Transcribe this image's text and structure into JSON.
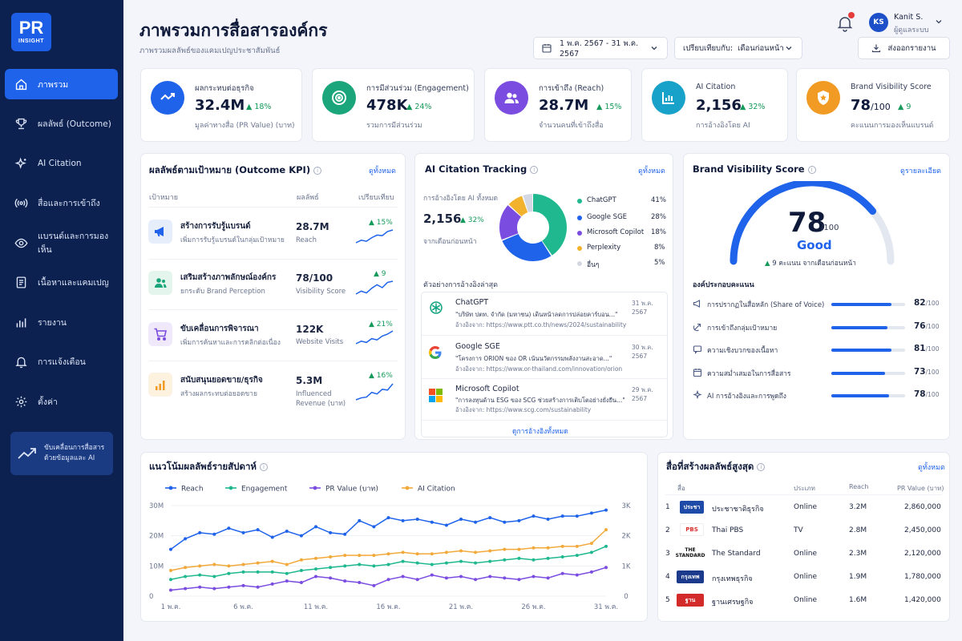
{
  "brand": {
    "l1": "PR",
    "l2": "INSIGHT"
  },
  "sidebar": {
    "items": [
      {
        "label": "ภาพรวม",
        "icon": "home-icon"
      },
      {
        "label": "ผลลัพธ์ (Outcome)",
        "icon": "trophy-icon"
      },
      {
        "label": "AI Citation",
        "icon": "sparkle-icon"
      },
      {
        "label": "สื่อและการเข้าถึง",
        "icon": "broadcast-icon"
      },
      {
        "label": "แบรนด์และการมองเห็น",
        "icon": "eye-icon"
      },
      {
        "label": "เนื้อหาและแคมเปญ",
        "icon": "document-icon"
      },
      {
        "label": "รายงาน",
        "icon": "bar-chart-icon"
      },
      {
        "label": "การแจ้งเตือน",
        "icon": "bell-icon"
      },
      {
        "label": "ตั้งค่า",
        "icon": "gear-icon"
      }
    ],
    "promo": {
      "line1": "ขับเคลื่อนการสื่อสาร",
      "line2": "ด้วยข้อมูลและ AI"
    }
  },
  "header": {
    "title": "ภาพรวมการสื่อสารองค์กร",
    "subtitle": "ภาพรวมผลลัพธ์ของแคมเปญประชาสัมพันธ์",
    "date_range": "1 พ.ค. 2567 - 31 พ.ค. 2567",
    "compare_label": "เปรียบเทียบกับ:",
    "compare_value": "เดือนก่อนหน้า",
    "export": "ส่งออกรายงาน"
  },
  "user": {
    "initials": "KS",
    "name": "Kanit S.",
    "role": "ผู้ดูแลระบบ"
  },
  "stats": [
    {
      "label": "ผลกระทบต่อธุรกิจ",
      "value": "32.4M",
      "unit": "",
      "change": "18%",
      "sub": "มูลค่าทางสื่อ (PR Value) (บาท)",
      "color": "#1e63ea"
    },
    {
      "label": "การมีส่วนร่วม (Engagement)",
      "value": "478K",
      "unit": "",
      "change": "24%",
      "sub": "รวมการมีส่วนร่วม",
      "color": "#1aa57a"
    },
    {
      "label": "การเข้าถึง (Reach)",
      "value": "28.7M",
      "unit": "",
      "change": "15%",
      "sub": "จำนวนคนที่เข้าถึงสื่อ",
      "color": "#7b4ce0"
    },
    {
      "label": "AI Citation",
      "value": "2,156",
      "unit": "",
      "change": "32%",
      "sub": "การอ้างอิงโดย AI",
      "color": "#19a2c9"
    },
    {
      "label": "Brand Visibility Score",
      "value": "78",
      "unit": "/100",
      "change": "9",
      "sub": "คะแนนการมองเห็นแบรนด์",
      "color": "#f29b24"
    }
  ],
  "kpi": {
    "title": "ผลลัพธ์ตามเป้าหมาย (Outcome KPI)",
    "link": "ดูทั้งหมด",
    "headers": {
      "goal": "เป้าหมาย",
      "result": "ผลลัพธ์",
      "compare": "เปรียบเทียบ"
    },
    "rows": [
      {
        "title": "สร้างการรับรู้แบรนด์",
        "desc": "เพิ่มการรับรู้แบรนด์ในกลุ่มเป้าหมาย",
        "value": "28.7M",
        "metric": "Reach",
        "change": "15%",
        "icon": "megaphone-icon",
        "trend": [
          2,
          3,
          2.6,
          4,
          5,
          4.8,
          6.4,
          7
        ]
      },
      {
        "title": "เสริมสร้างภาพลักษณ์องค์กร",
        "desc": "ยกระดับ Brand Perception",
        "value": "78/100",
        "metric": "Visibility Score",
        "change": "9",
        "icon": "people-icon",
        "trend": [
          3,
          3.5,
          3.2,
          4,
          4.6,
          4.1,
          5,
          5.2
        ]
      },
      {
        "title": "ขับเคลื่อนการพิจารณา",
        "desc": "เพิ่มการค้นหาและการคลิกต่อเนื่อง",
        "value": "122K",
        "metric": "Website Visits",
        "change": "21%",
        "icon": "cart-icon",
        "trend": [
          2,
          2.8,
          2.4,
          3.6,
          3.2,
          4.4,
          5,
          6
        ]
      },
      {
        "title": "สนับสนุนยอดขาย/ธุรกิจ",
        "desc": "สร้างผลกระทบต่อยอดขาย",
        "value": "5.3M",
        "metric": "Influenced Revenue (บาท)",
        "change": "16%",
        "icon": "chart-up-icon",
        "trend": [
          1.5,
          2,
          2.2,
          3.4,
          3,
          4.2,
          4,
          5.6
        ]
      }
    ]
  },
  "citation": {
    "title": "AI Citation Tracking",
    "link": "ดูทั้งหมด",
    "label": "การอ้างอิงโดย AI ทั้งหมด",
    "value": "2,156",
    "change": "32%",
    "sub": "จากเดือนก่อนหน้า",
    "donut": [
      {
        "name": "ChatGPT",
        "pct": "41%",
        "value": 41,
        "color": "#1fb88f"
      },
      {
        "name": "Google SGE",
        "pct": "28%",
        "value": 28,
        "color": "#1e63ea"
      },
      {
        "name": "Microsoft Copilot",
        "pct": "18%",
        "value": 18,
        "color": "#7b4ce0"
      },
      {
        "name": "Perplexity",
        "pct": "8%",
        "value": 8,
        "color": "#f2b22e"
      },
      {
        "name": "อื่นๆ",
        "pct": "5%",
        "value": 5,
        "color": "#d4d8e2"
      }
    ],
    "examples_title": "ตัวอย่างการอ้างอิงล่าสุด",
    "examples": [
      {
        "source": "ChatGPT",
        "date": "31 พ.ค. 2567",
        "quote": "\"บริษัท ปตท. จำกัด (มหาชน) เดินหน้าลดการปล่อยคาร์บอน...\"",
        "ref": "อ้างอิงจาก: https://www.ptt.co.th/news/2024/sustainability"
      },
      {
        "source": "Google SGE",
        "date": "30 พ.ค. 2567",
        "quote": "\"โครงการ ORION ของ OR เน้นนวัตกรรมพลังงานสะอาด...\"",
        "ref": "อ้างอิงจาก: https://www.or-thailand.com/innovation/orion"
      },
      {
        "source": "Microsoft Copilot",
        "date": "29 พ.ค. 2567",
        "quote": "\"การลงทุนด้าน ESG ของ SCG ช่วยสร้างการเติบโตอย่างยั่งยืน...\"",
        "ref": "อ้างอิงจาก: https://www.scg.com/sustainability"
      }
    ],
    "view_all": "ดูการอ้างอิงทั้งหมด"
  },
  "visibility": {
    "title": "Brand Visibility Score",
    "link": "ดูรายละเอียด",
    "score": "78",
    "score_value": 78,
    "max": "/100",
    "rating": "Good",
    "change": "9 คะแนน จากเดือนก่อนหน้า",
    "factors_title": "องค์ประกอบคะแนน",
    "factors": [
      {
        "label": "การปรากฏในสื่อหลัก (Share of Voice)",
        "score": "82",
        "value": 82,
        "icon": "megaphone-icon"
      },
      {
        "label": "การเข้าถึงกลุ่มเป้าหมาย",
        "score": "76",
        "value": 76,
        "icon": "target-icon"
      },
      {
        "label": "ความเชิงบวกของเนื้อหา",
        "score": "81",
        "value": 81,
        "icon": "chat-icon"
      },
      {
        "label": "ความสม่ำเสมอในการสื่อสาร",
        "score": "73",
        "value": 73,
        "icon": "calendar-icon"
      },
      {
        "label": "AI การอ้างอิงและการพูดถึง",
        "score": "78",
        "value": 78,
        "icon": "sparkle-icon"
      }
    ],
    "max_label": "/100"
  },
  "trend": {
    "title": "แนวโน้มผลลัพธ์รายสัปดาห์"
  },
  "chart_data": {
    "type": "line",
    "x": [
      "1 พ.ค.",
      "2 พ.ค.",
      "3 พ.ค.",
      "4 พ.ค.",
      "5 พ.ค.",
      "6 พ.ค.",
      "7 พ.ค.",
      "8 พ.ค.",
      "9 พ.ค.",
      "10 พ.ค.",
      "11 พ.ค.",
      "12 พ.ค.",
      "13 พ.ค.",
      "14 พ.ค.",
      "15 พ.ค.",
      "16 พ.ค.",
      "17 พ.ค.",
      "18 พ.ค.",
      "19 พ.ค.",
      "20 พ.ค.",
      "21 พ.ค.",
      "22 พ.ค.",
      "23 พ.ค.",
      "24 พ.ค.",
      "25 พ.ค.",
      "26 พ.ค.",
      "27 พ.ค.",
      "28 พ.ค.",
      "29 พ.ค.",
      "30 พ.ค.",
      "31 พ.ค."
    ],
    "xticks": [
      "1 พ.ค.",
      "6 พ.ค.",
      "11 พ.ค.",
      "16 พ.ค.",
      "21 พ.ค.",
      "26 พ.ค.",
      "31 พ.ค."
    ],
    "yticks_left": [
      "30M",
      "20M",
      "10M",
      "0"
    ],
    "yticks_right": [
      "3K",
      "2K",
      "1K",
      "0"
    ],
    "ylim_left": [
      0,
      30000000
    ],
    "ylim_right": [
      0,
      3000
    ],
    "series": [
      {
        "name": "Reach",
        "axis": "left",
        "color": "#1e63ea",
        "values": [
          15500000,
          19000000,
          21000000,
          20500000,
          22500000,
          21000000,
          22000000,
          19500000,
          21500000,
          20000000,
          23000000,
          21000000,
          20500000,
          25000000,
          23000000,
          26000000,
          25000000,
          25500000,
          24500000,
          23500000,
          25500000,
          24500000,
          26000000,
          24500000,
          25000000,
          26500000,
          25500000,
          26500000,
          26500000,
          27500000,
          28500000
        ]
      },
      {
        "name": "Engagement",
        "axis": "left",
        "color": "#1fb88f",
        "values": [
          5500000,
          6500000,
          7000000,
          6500000,
          7500000,
          8000000,
          8000000,
          8000000,
          7500000,
          8500000,
          9000000,
          9500000,
          10000000,
          10500000,
          10000000,
          10500000,
          11500000,
          11000000,
          10500000,
          11000000,
          11500000,
          11000000,
          11500000,
          12000000,
          12500000,
          12000000,
          12500000,
          13000000,
          13500000,
          14500000,
          16500000
        ]
      },
      {
        "name": "PR Value (บาท)",
        "axis": "left",
        "color": "#7b4ce0",
        "values": [
          2000000,
          2500000,
          3000000,
          2500000,
          3000000,
          3500000,
          3000000,
          4000000,
          5000000,
          4500000,
          6500000,
          6000000,
          5000000,
          4500000,
          3500000,
          5500000,
          6500000,
          5500000,
          7000000,
          6000000,
          6500000,
          5500000,
          6500000,
          6000000,
          5500000,
          6500000,
          6000000,
          7500000,
          7000000,
          8000000,
          9500000
        ]
      },
      {
        "name": "AI Citation",
        "axis": "right",
        "color": "#f2a93b",
        "values": [
          850,
          950,
          1000,
          1050,
          1000,
          1050,
          1100,
          1150,
          1050,
          1200,
          1250,
          1300,
          1350,
          1350,
          1350,
          1400,
          1450,
          1400,
          1400,
          1450,
          1500,
          1450,
          1500,
          1550,
          1550,
          1600,
          1600,
          1650,
          1650,
          1750,
          2200
        ]
      }
    ]
  },
  "media": {
    "title": "สื่อที่สร้างผลลัพธ์สูงสุด",
    "link": "ดูทั้งหมด",
    "headers": {
      "media": "สื่อ",
      "type": "ประเภท",
      "reach": "Reach",
      "pr": "PR Value (บาท)"
    },
    "rows": [
      {
        "rank": "1",
        "name": "ประชาชาติธุรกิจ",
        "type": "Online",
        "reach": "3.2M",
        "pr": "2,860,000",
        "logo_text": "ประชา",
        "logo_color": "#1e4aa8"
      },
      {
        "rank": "2",
        "name": "Thai PBS",
        "type": "TV",
        "reach": "2.8M",
        "pr": "2,450,000",
        "logo_text": "PBS",
        "logo_color": "#d9302c"
      },
      {
        "rank": "3",
        "name": "The Standard",
        "type": "Online",
        "reach": "2.3M",
        "pr": "2,120,000",
        "logo_text": "THE STANDARD",
        "logo_color": "#111111"
      },
      {
        "rank": "4",
        "name": "กรุงเทพธุรกิจ",
        "type": "Online",
        "reach": "1.9M",
        "pr": "1,780,000",
        "logo_text": "กรุงเทพ",
        "logo_color": "#1b3a8c"
      },
      {
        "rank": "5",
        "name": "ฐานเศรษฐกิจ",
        "type": "Online",
        "reach": "1.6M",
        "pr": "1,420,000",
        "logo_text": "ฐาน",
        "logo_color": "#d32a2a"
      }
    ]
  }
}
